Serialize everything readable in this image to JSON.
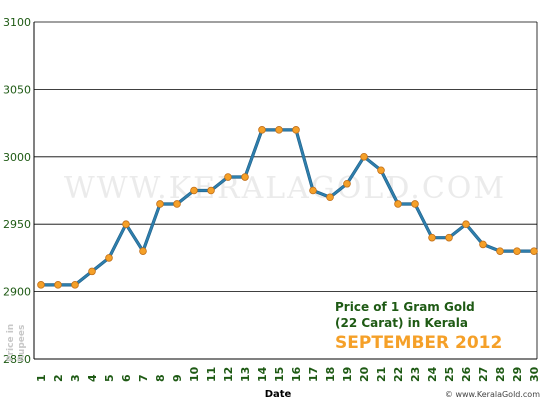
{
  "chart_data": {
    "type": "line",
    "title_line1": "Price of 1 Gram Gold",
    "title_line2": "(22 Carat) in Kerala",
    "subtitle": "SEPTEMBER 2012",
    "xlabel": "Date",
    "ylabel": "Price in Rupees",
    "ylim": [
      2850,
      3100
    ],
    "yticks": [
      2850,
      2900,
      2950,
      3000,
      3050,
      3100
    ],
    "grid": true,
    "categories": [
      "1",
      "2",
      "3",
      "4",
      "5",
      "6",
      "7",
      "8",
      "9",
      "10",
      "11",
      "12",
      "13",
      "14",
      "15",
      "16",
      "17",
      "18",
      "19",
      "20",
      "21",
      "22",
      "23",
      "24",
      "25",
      "26",
      "27",
      "28",
      "29",
      "30"
    ],
    "values": [
      2905,
      2905,
      2905,
      2915,
      2925,
      2950,
      2930,
      2965,
      2965,
      2975,
      2975,
      2985,
      2985,
      3020,
      3020,
      3020,
      2975,
      2970,
      2980,
      3000,
      2990,
      2965,
      2965,
      2940,
      2940,
      2950,
      2935,
      2930,
      2930,
      2930
    ],
    "line_color": "#2e7fad",
    "marker_color": "#f5a028",
    "watermark": "WWW.KERALAGOLD.COM",
    "credit": "© www.KeralaGold.com"
  }
}
